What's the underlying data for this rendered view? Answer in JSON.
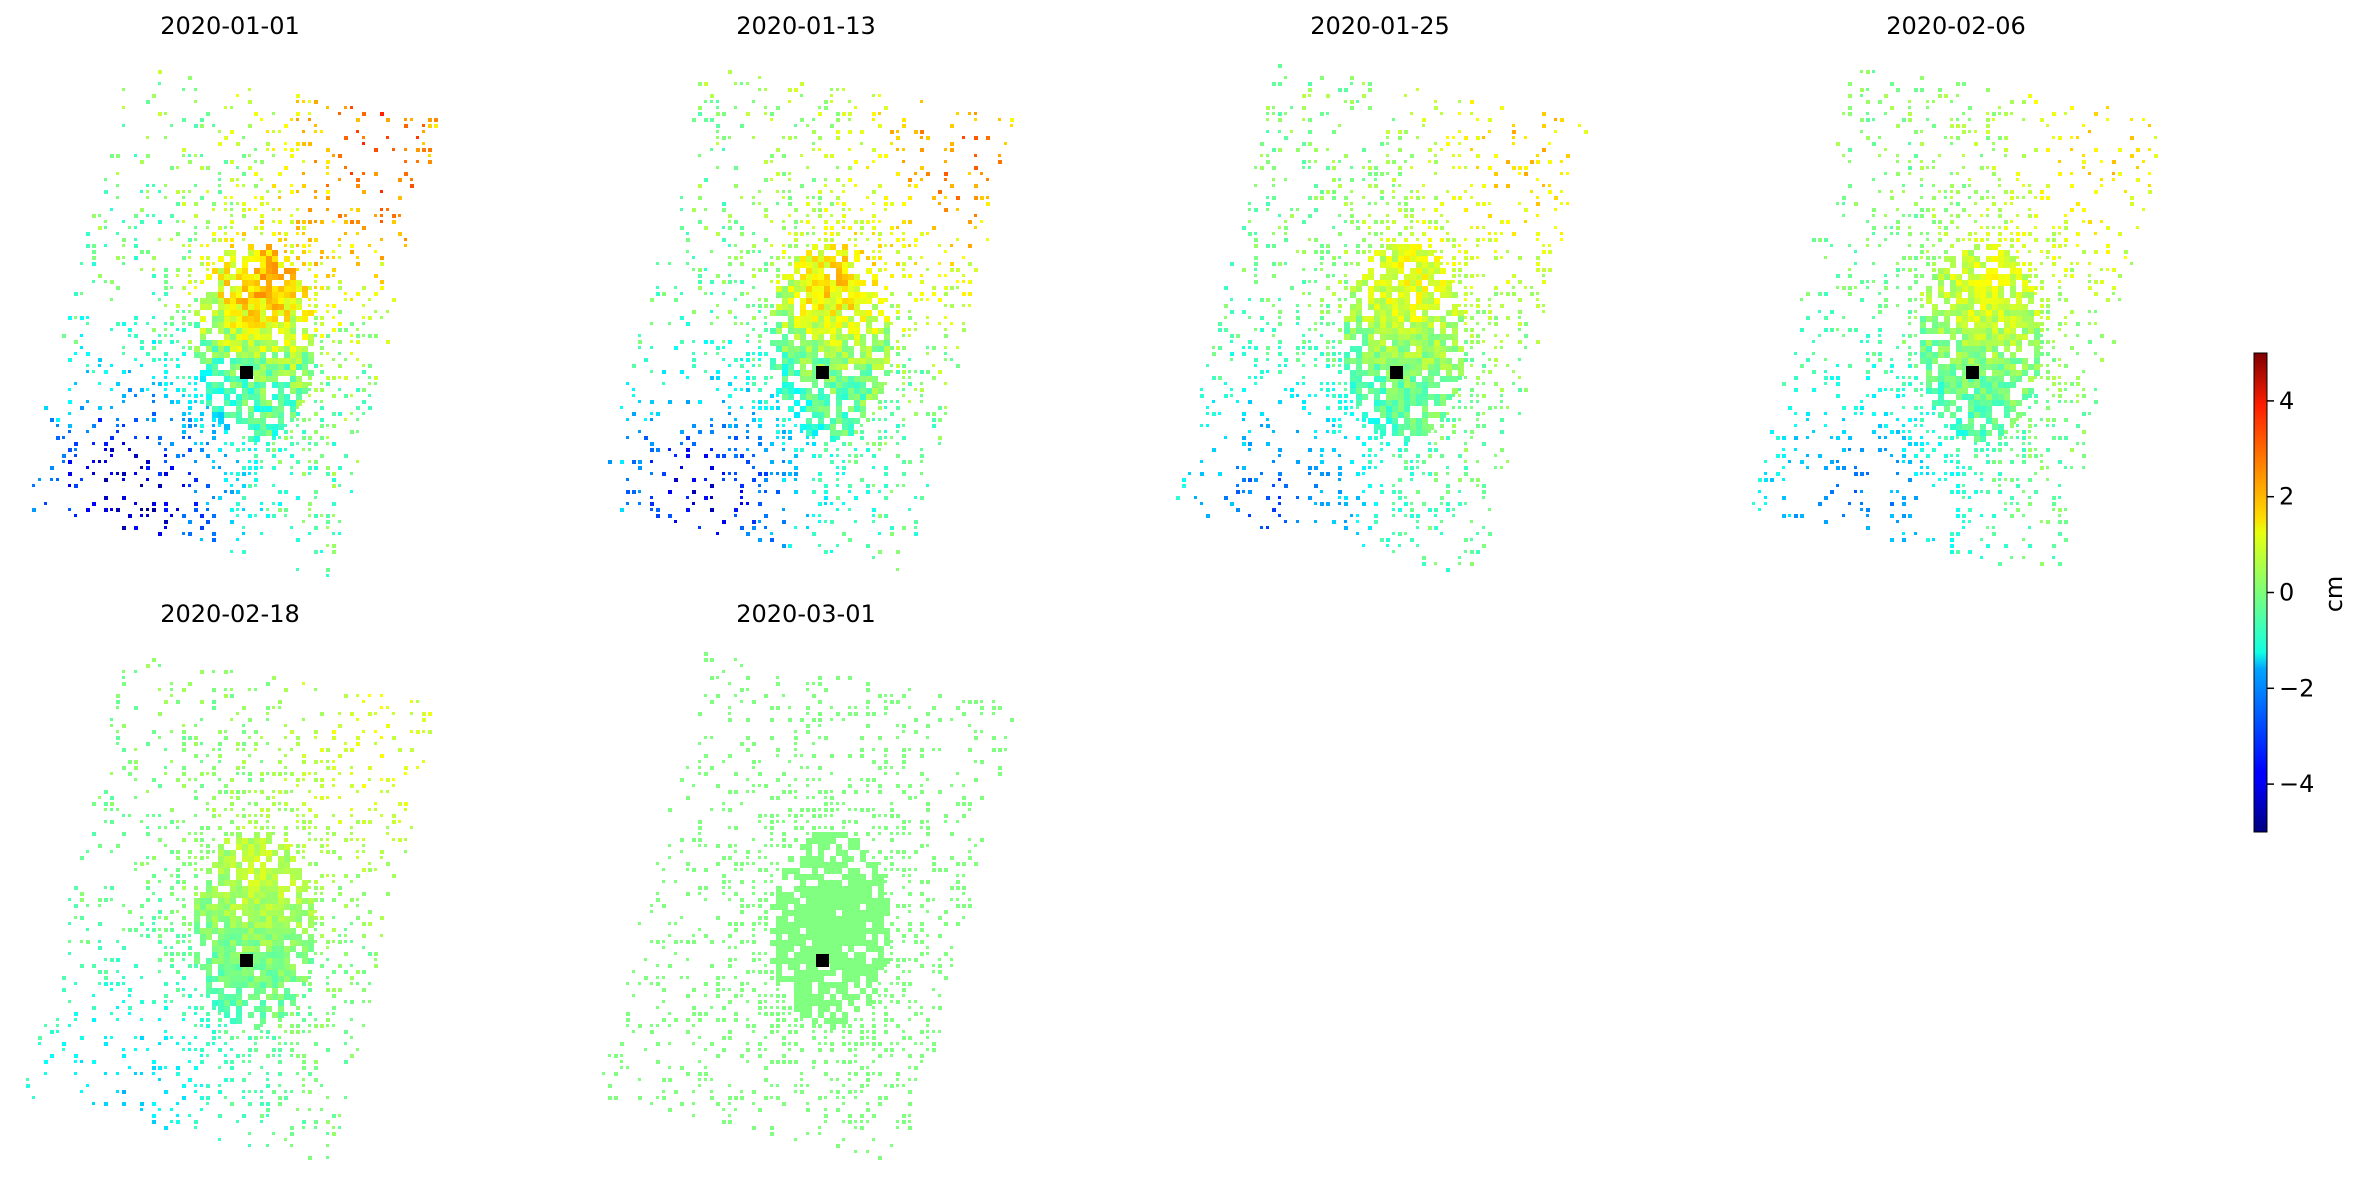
{
  "chart_data": {
    "type": "heatmap",
    "title": "",
    "layout": {
      "rows": 2,
      "cols": 4
    },
    "panels": [
      {
        "title": "2020-01-01",
        "pattern": "strong"
      },
      {
        "title": "2020-01-13",
        "pattern": "strong-alt"
      },
      {
        "title": "2020-01-25",
        "pattern": "medium"
      },
      {
        "title": "2020-02-06",
        "pattern": "medium-alt"
      },
      {
        "title": "2020-02-18",
        "pattern": "weak"
      },
      {
        "title": "2020-03-01",
        "pattern": "reference"
      }
    ],
    "reference_point": {
      "marker": "black-square"
    },
    "colorbar": {
      "colormap": "jet",
      "label": "cm",
      "vmin": -5,
      "vmax": 5,
      "ticks": [
        {
          "value": 4,
          "label": "4"
        },
        {
          "value": 2,
          "label": "2"
        },
        {
          "value": 0,
          "label": "0"
        },
        {
          "value": -2,
          "label": "−2"
        },
        {
          "value": -4,
          "label": "−4"
        }
      ]
    }
  }
}
